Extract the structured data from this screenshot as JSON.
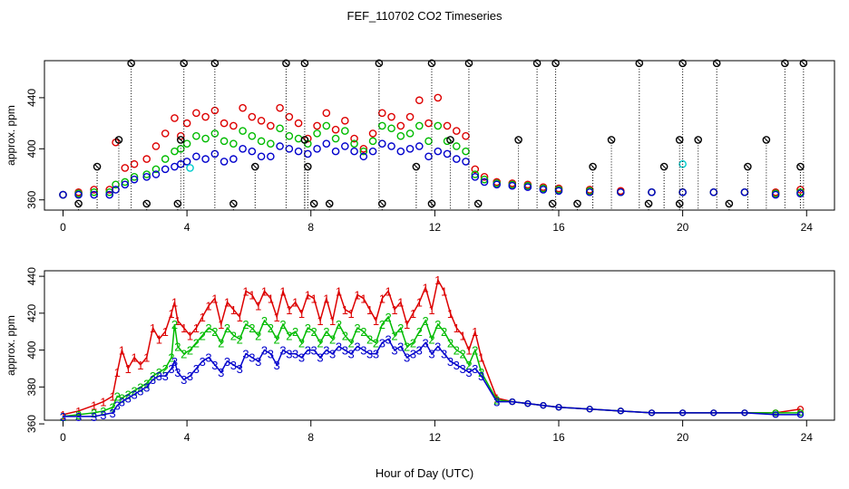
{
  "chart_data": {
    "title": "FEF_110702  CO2 Timeseries",
    "xlabel": "Hour of Day (UTC)",
    "colors": {
      "s1": "#dd0000",
      "s2": "#00bb00",
      "s3": "#0000cc",
      "s0": "#000000",
      "cyan": "#00cccc",
      "drop": "#000000"
    },
    "panels": [
      {
        "type": "scatter",
        "ylabel": "approx. ppm",
        "xlim": [
          -0.6,
          24.9
        ],
        "ylim": [
          352,
          469
        ],
        "xticks": [
          "0",
          "4",
          "8",
          "12",
          "16",
          "20",
          "24"
        ],
        "yticks": [
          "360",
          "400",
          "440"
        ],
        "series": [
          {
            "key": "s1",
            "marker": "circle",
            "x": [
              0,
              0.5,
              1,
              1.5,
              1.7,
              2,
              2.3,
              2.7,
              3,
              3.3,
              3.6,
              3.8,
              4,
              4.3,
              4.6,
              4.9,
              5.2,
              5.5,
              5.8,
              6.1,
              6.4,
              6.7,
              7,
              7.3,
              7.6,
              7.9,
              8.2,
              8.5,
              8.8,
              9.1,
              9.4,
              9.7,
              10,
              10.3,
              10.6,
              10.9,
              11.2,
              11.5,
              11.8,
              12.1,
              12.4,
              12.7,
              13,
              13.3,
              13.6,
              14,
              14.5,
              15,
              15.5,
              16,
              17,
              18,
              19,
              20,
              21,
              22,
              23,
              23.8
            ],
            "y": [
              364,
              366,
              368,
              368,
              405,
              385,
              388,
              392,
              402,
              412,
              424,
              410,
              420,
              428,
              425,
              430,
              420,
              418,
              432,
              425,
              422,
              418,
              432,
              425,
              420,
              408,
              418,
              428,
              415,
              422,
              408,
              400,
              412,
              428,
              425,
              418,
              425,
              438,
              420,
              440,
              418,
              414,
              410,
              384,
              378,
              374,
              373,
              372,
              370,
              369,
              368,
              367,
              366,
              366,
              366,
              366,
              366,
              368
            ]
          },
          {
            "key": "s2",
            "marker": "circle",
            "x": [
              0,
              0.5,
              1,
              1.5,
              1.7,
              2,
              2.3,
              2.7,
              3,
              3.3,
              3.6,
              3.8,
              4,
              4.3,
              4.6,
              4.9,
              5.2,
              5.5,
              5.8,
              6.1,
              6.4,
              6.7,
              7,
              7.3,
              7.6,
              7.9,
              8.2,
              8.5,
              8.8,
              9.1,
              9.4,
              9.7,
              10,
              10.3,
              10.6,
              10.9,
              11.2,
              11.5,
              11.8,
              12.1,
              12.4,
              12.7,
              13,
              13.3,
              13.6,
              14,
              14.5,
              15,
              15.5,
              16,
              17,
              18,
              19,
              20,
              21,
              22,
              23,
              23.8
            ],
            "y": [
              364,
              365,
              366,
              366,
              372,
              374,
              378,
              380,
              384,
              392,
              398,
              400,
              404,
              410,
              408,
              412,
              406,
              404,
              414,
              410,
              406,
              404,
              416,
              410,
              408,
              404,
              412,
              418,
              408,
              414,
              404,
              398,
              406,
              418,
              416,
              410,
              412,
              418,
              406,
              418,
              406,
              402,
              398,
              380,
              376,
              373,
              372,
              371,
              369,
              368,
              367,
              366,
              366,
              366,
              366,
              366,
              365,
              366
            ]
          },
          {
            "key": "s3",
            "marker": "circle",
            "x": [
              0,
              0.5,
              1,
              1.5,
              1.7,
              2,
              2.3,
              2.7,
              3,
              3.3,
              3.6,
              3.8,
              4,
              4.3,
              4.6,
              4.9,
              5.2,
              5.5,
              5.8,
              6.1,
              6.4,
              6.7,
              7,
              7.3,
              7.6,
              7.9,
              8.2,
              8.5,
              8.8,
              9.1,
              9.4,
              9.7,
              10,
              10.3,
              10.6,
              10.9,
              11.2,
              11.5,
              11.8,
              12.1,
              12.4,
              12.7,
              13,
              13.3,
              13.6,
              14,
              14.5,
              15,
              15.5,
              16,
              17,
              18,
              19,
              20,
              21,
              22,
              23,
              23.8
            ],
            "y": [
              364,
              364,
              364,
              364,
              368,
              372,
              376,
              378,
              380,
              384,
              386,
              388,
              390,
              394,
              392,
              396,
              390,
              392,
              400,
              398,
              394,
              394,
              402,
              400,
              398,
              396,
              400,
              404,
              398,
              402,
              398,
              394,
              398,
              404,
              402,
              398,
              400,
              402,
              394,
              398,
              396,
              392,
              390,
              378,
              374,
              372,
              371,
              370,
              368,
              367,
              366,
              366,
              366,
              366,
              366,
              366,
              364,
              365
            ]
          },
          {
            "key": "cyan",
            "marker": "circle",
            "x": [
              4.1,
              20.0
            ],
            "y": [
              385,
              388
            ]
          },
          {
            "key": "s0",
            "marker": "circle-x",
            "drop": true,
            "x": [
              0.5,
              1.1,
              1.8,
              2.2,
              2.7,
              3.7,
              3.8,
              3.9,
              4.9,
              5.5,
              6.2,
              7.2,
              7.8,
              7.8,
              7.9,
              8.1,
              8.6,
              10.2,
              10.3,
              11.4,
              11.9,
              11.9,
              12.5,
              13.1,
              13.4,
              14.7,
              15.3,
              15.8,
              15.9,
              16.6,
              17.1,
              17.7,
              18.6,
              18.9,
              19.4,
              19.9,
              19.9,
              20.0,
              20.5,
              21.1,
              21.5,
              22.1,
              22.7,
              23.3,
              23.8,
              23.9
            ],
            "y": [
              357,
              386,
              407,
              467,
              357,
              357,
              407,
              467,
              467,
              357,
              386,
              467,
              407,
              467,
              386,
              357,
              357,
              467,
              357,
              386,
              357,
              467,
              407,
              467,
              357,
              407,
              467,
              357,
              467,
              357,
              386,
              407,
              467,
              357,
              386,
              357,
              407,
              467,
              407,
              467,
              357,
              386,
              407,
              467,
              386,
              467
            ]
          }
        ]
      },
      {
        "type": "line",
        "ylabel": "approx. ppm",
        "xlim": [
          -0.6,
          24.9
        ],
        "ylim": [
          362,
          443
        ],
        "xticks": [
          "0",
          "4",
          "8",
          "12",
          "16",
          "20",
          "24"
        ],
        "yticks": [
          "360",
          "380",
          "400",
          "420",
          "440"
        ],
        "series": [
          {
            "key": "s1",
            "label": "1",
            "x": [
              0,
              0.5,
              1,
              1.3,
              1.6,
              1.75,
              1.9,
              2.1,
              2.3,
              2.5,
              2.7,
              2.9,
              3.1,
              3.3,
              3.5,
              3.6,
              3.7,
              3.9,
              4.1,
              4.3,
              4.5,
              4.7,
              4.9,
              5.1,
              5.3,
              5.5,
              5.7,
              5.9,
              6.1,
              6.3,
              6.5,
              6.7,
              6.9,
              7.1,
              7.3,
              7.5,
              7.7,
              7.9,
              8.1,
              8.3,
              8.5,
              8.7,
              8.9,
              9.1,
              9.3,
              9.5,
              9.7,
              9.9,
              10.1,
              10.3,
              10.5,
              10.7,
              10.9,
              11.1,
              11.3,
              11.5,
              11.7,
              11.9,
              12.1,
              12.3,
              12.5,
              12.7,
              12.9,
              13.1,
              13.3,
              13.5,
              14,
              14.5,
              15,
              15.5,
              16,
              17,
              18,
              19,
              20,
              21,
              22,
              23,
              23.8
            ],
            "y": [
              365,
              367,
              370,
              372,
              375,
              388,
              400,
              390,
              396,
              392,
              396,
              412,
              406,
              410,
              420,
              426,
              416,
              412,
              408,
              412,
              418,
              424,
              428,
              414,
              426,
              422,
              418,
              432,
              430,
              424,
              432,
              428,
              418,
              432,
              422,
              426,
              420,
              430,
              428,
              416,
              428,
              416,
              432,
              422,
              420,
              430,
              428,
              422,
              416,
              428,
              432,
              422,
              426,
              414,
              420,
              426,
              434,
              422,
              438,
              432,
              420,
              412,
              408,
              400,
              410,
              396,
              374,
              372,
              371,
              370,
              369,
              368,
              367,
              366,
              366,
              366,
              366,
              366,
              368
            ]
          },
          {
            "key": "s2",
            "label": "2",
            "x": [
              0,
              0.5,
              1,
              1.3,
              1.6,
              1.75,
              1.9,
              2.1,
              2.3,
              2.5,
              2.7,
              2.9,
              3.1,
              3.3,
              3.5,
              3.6,
              3.7,
              3.9,
              4.1,
              4.3,
              4.5,
              4.7,
              4.9,
              5.1,
              5.3,
              5.5,
              5.7,
              5.9,
              6.1,
              6.3,
              6.5,
              6.7,
              6.9,
              7.1,
              7.3,
              7.5,
              7.7,
              7.9,
              8.1,
              8.3,
              8.5,
              8.7,
              8.9,
              9.1,
              9.3,
              9.5,
              9.7,
              9.9,
              10.1,
              10.3,
              10.5,
              10.7,
              10.9,
              11.1,
              11.3,
              11.5,
              11.7,
              11.9,
              12.1,
              12.3,
              12.5,
              12.7,
              12.9,
              13.1,
              13.3,
              13.5,
              14,
              14.5,
              15,
              15.5,
              16,
              17,
              18,
              19,
              20,
              21,
              22,
              23,
              23.8
            ],
            "y": [
              364,
              365,
              366,
              367,
              369,
              375,
              374,
              376,
              378,
              380,
              382,
              386,
              388,
              390,
              396,
              414,
              402,
              398,
              400,
              404,
              408,
              412,
              410,
              404,
              412,
              408,
              406,
              414,
              412,
              408,
              416,
              412,
              406,
              414,
              408,
              410,
              404,
              412,
              410,
              404,
              410,
              406,
              414,
              408,
              404,
              412,
              410,
              406,
              404,
              414,
              418,
              408,
              412,
              402,
              404,
              410,
              416,
              406,
              414,
              410,
              404,
              400,
              398,
              392,
              400,
              388,
              373,
              372,
              371,
              370,
              369,
              368,
              367,
              366,
              366,
              366,
              366,
              366,
              366
            ]
          },
          {
            "key": "s3",
            "label": "3",
            "x": [
              0,
              0.5,
              1,
              1.3,
              1.6,
              1.75,
              1.9,
              2.1,
              2.3,
              2.5,
              2.7,
              2.9,
              3.1,
              3.3,
              3.5,
              3.6,
              3.7,
              3.9,
              4.1,
              4.3,
              4.5,
              4.7,
              4.9,
              5.1,
              5.3,
              5.5,
              5.7,
              5.9,
              6.1,
              6.3,
              6.5,
              6.7,
              6.9,
              7.1,
              7.3,
              7.5,
              7.7,
              7.9,
              8.1,
              8.3,
              8.5,
              8.7,
              8.9,
              9.1,
              9.3,
              9.5,
              9.7,
              9.9,
              10.1,
              10.3,
              10.5,
              10.7,
              10.9,
              11.1,
              11.3,
              11.5,
              11.7,
              11.9,
              12.1,
              12.3,
              12.5,
              12.7,
              12.9,
              13.1,
              13.3,
              13.5,
              14,
              14.5,
              15,
              15.5,
              16,
              17,
              18,
              19,
              20,
              21,
              22,
              23,
              23.8
            ],
            "y": [
              364,
              364,
              364,
              365,
              366,
              370,
              372,
              374,
              376,
              378,
              380,
              384,
              386,
              386,
              390,
              394,
              388,
              384,
              386,
              390,
              394,
              396,
              392,
              388,
              394,
              392,
              390,
              398,
              396,
              394,
              400,
              398,
              392,
              400,
              398,
              398,
              396,
              400,
              400,
              396,
              400,
              398,
              402,
              400,
              398,
              402,
              400,
              398,
              398,
              404,
              406,
              400,
              402,
              396,
              398,
              400,
              404,
              398,
              402,
              398,
              394,
              392,
              390,
              388,
              390,
              386,
              372,
              372,
              371,
              370,
              369,
              368,
              367,
              366,
              366,
              366,
              366,
              365,
              365
            ]
          }
        ]
      }
    ]
  }
}
